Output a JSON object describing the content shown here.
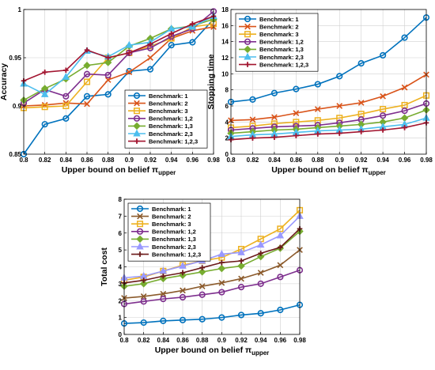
{
  "chart_data": [
    {
      "type": "line",
      "ylabel": "Accuracy",
      "xlabel": "Upper bound on belief π",
      "xlabel_sub": "upper",
      "x": [
        0.8,
        0.82,
        0.84,
        0.86,
        0.88,
        0.9,
        0.92,
        0.94,
        0.96,
        0.98
      ],
      "xlim": [
        0.8,
        0.98
      ],
      "ylim": [
        0.85,
        1
      ],
      "xticks": [
        "0.8",
        "0.82",
        "0.84",
        "0.86",
        "0.88",
        "0.9",
        "0.92",
        "0.94",
        "0.96",
        "0.98"
      ],
      "yticks": [
        "0.85",
        "0.9",
        "0.95",
        "1"
      ],
      "legend_position": "bottom-right",
      "series": [
        {
          "name": "Benchmark: 1",
          "values": [
            0.85,
            0.881,
            0.887,
            0.91,
            0.912,
            0.936,
            0.938,
            0.963,
            0.966,
            0.99
          ]
        },
        {
          "name": "Benchmark: 2",
          "values": [
            0.9,
            0.901,
            0.903,
            0.902,
            0.927,
            0.935,
            0.95,
            0.97,
            0.978,
            0.982
          ]
        },
        {
          "name": "Benchmark: 3",
          "values": [
            0.898,
            0.899,
            0.9,
            0.925,
            0.95,
            0.955,
            0.962,
            0.97,
            0.982,
            0.985
          ]
        },
        {
          "name": "Benchmark: 1,2",
          "values": [
            0.903,
            0.917,
            0.91,
            0.933,
            0.932,
            0.955,
            0.96,
            0.972,
            0.98,
            0.998
          ]
        },
        {
          "name": "Benchmark: 1,3",
          "values": [
            0.906,
            0.918,
            0.928,
            0.942,
            0.945,
            0.962,
            0.97,
            0.98,
            0.983,
            0.99
          ]
        },
        {
          "name": "Benchmark: 2,3",
          "values": [
            0.923,
            0.912,
            0.93,
            0.957,
            0.951,
            0.963,
            0.966,
            0.98,
            0.982,
            0.993
          ]
        },
        {
          "name": "Benchmark: 1,2,3",
          "values": [
            0.926,
            0.935,
            0.937,
            0.958,
            0.95,
            0.955,
            0.964,
            0.975,
            0.985,
            0.993
          ]
        }
      ]
    },
    {
      "type": "line",
      "ylabel": "Stopping time",
      "xlabel": "Upper bound on belief π",
      "xlabel_sub": "upper",
      "x": [
        0.8,
        0.82,
        0.84,
        0.86,
        0.88,
        0.9,
        0.92,
        0.94,
        0.96,
        0.98
      ],
      "xlim": [
        0.8,
        0.98
      ],
      "ylim": [
        0,
        18
      ],
      "xticks": [
        "0.8",
        "0.82",
        "0.84",
        "0.86",
        "0.88",
        "0.9",
        "0.92",
        "0.94",
        "0.96",
        "0.98"
      ],
      "yticks": [
        "0",
        "2",
        "4",
        "6",
        "8",
        "10",
        "12",
        "14",
        "16",
        "18"
      ],
      "legend_position": "top-left",
      "series": [
        {
          "name": "Benchmark: 1",
          "values": [
            6.5,
            6.8,
            7.6,
            8.1,
            8.7,
            9.7,
            11.3,
            12.3,
            14.5,
            17.0
          ]
        },
        {
          "name": "Benchmark: 2",
          "values": [
            4.2,
            4.3,
            4.6,
            5.1,
            5.6,
            6.0,
            6.4,
            7.2,
            8.3,
            9.9
          ]
        },
        {
          "name": "Benchmark: 3",
          "values": [
            3.3,
            3.5,
            3.8,
            4.0,
            4.2,
            4.5,
            5.0,
            5.6,
            6.1,
            7.3
          ]
        },
        {
          "name": "Benchmark: 1,2",
          "values": [
            3.0,
            3.2,
            3.4,
            3.5,
            3.6,
            3.9,
            4.3,
            4.8,
            5.4,
            6.3
          ]
        },
        {
          "name": "Benchmark: 1,3",
          "values": [
            2.6,
            2.8,
            3.0,
            3.1,
            3.3,
            3.5,
            3.7,
            4.0,
            4.5,
            5.5
          ]
        },
        {
          "name": "Benchmark: 2,3",
          "values": [
            2.2,
            2.4,
            2.5,
            2.7,
            2.9,
            3.0,
            3.1,
            3.4,
            3.7,
            4.5
          ]
        },
        {
          "name": "Benchmark: 1,2,3",
          "values": [
            1.8,
            2.0,
            2.1,
            2.3,
            2.5,
            2.6,
            2.8,
            3.0,
            3.3,
            3.9
          ]
        }
      ]
    },
    {
      "type": "line",
      "ylabel": "Total cost",
      "xlabel": "Upper bound on belief π",
      "xlabel_sub": "upper",
      "x": [
        0.8,
        0.82,
        0.84,
        0.86,
        0.88,
        0.9,
        0.92,
        0.94,
        0.96,
        0.98
      ],
      "xlim": [
        0.8,
        0.98
      ],
      "ylim": [
        0,
        8
      ],
      "xticks": [
        "0.8",
        "0.82",
        "0.84",
        "0.86",
        "0.88",
        "0.9",
        "0.92",
        "0.94",
        "0.96",
        "0.98"
      ],
      "yticks": [
        "0",
        "1",
        "2",
        "3",
        "4",
        "5",
        "6",
        "7",
        "8"
      ],
      "legend_position": "top-left",
      "series": [
        {
          "name": "Benchmark: 1",
          "values": [
            0.65,
            0.7,
            0.8,
            0.85,
            0.9,
            1.0,
            1.15,
            1.25,
            1.45,
            1.75
          ]
        },
        {
          "name": "Benchmark: 2",
          "values": [
            2.15,
            2.25,
            2.4,
            2.6,
            2.85,
            3.05,
            3.3,
            3.65,
            4.1,
            5.0
          ]
        },
        {
          "name": "Benchmark: 3",
          "values": [
            3.2,
            3.4,
            3.75,
            4.1,
            4.35,
            4.55,
            5.05,
            5.65,
            6.25,
            7.35
          ]
        },
        {
          "name": "Benchmark: 1,2",
          "values": [
            1.8,
            1.95,
            2.1,
            2.2,
            2.35,
            2.5,
            2.8,
            3.0,
            3.4,
            3.8
          ]
        },
        {
          "name": "Benchmark: 1,3",
          "values": [
            2.85,
            3.0,
            3.3,
            3.5,
            3.7,
            3.9,
            4.05,
            4.6,
            5.1,
            6.1
          ]
        },
        {
          "name": "Benchmark: 2,3",
          "values": [
            3.35,
            3.45,
            3.75,
            4.05,
            4.35,
            4.75,
            4.85,
            5.3,
            5.85,
            7.0
          ]
        },
        {
          "name": "Benchmark: 1,2,3",
          "values": [
            3.05,
            3.2,
            3.45,
            3.65,
            3.95,
            4.25,
            4.35,
            4.8,
            5.15,
            6.25
          ]
        }
      ]
    }
  ],
  "series_styles": [
    {
      "color": "#0072BD",
      "marker": "circle"
    },
    {
      "color": "#D95319",
      "marker": "x"
    },
    {
      "color": "#EDB120",
      "marker": "square"
    },
    {
      "color": "#7E2F8E",
      "marker": "circle"
    },
    {
      "color": "#77AC30",
      "marker": "diamond"
    },
    {
      "color": "#4DBEEE",
      "marker": "triangle"
    },
    {
      "color": "#A2142F",
      "marker": "plus"
    }
  ],
  "series_styles_cost": [
    {
      "color": "#0072BD",
      "marker": "circle"
    },
    {
      "color": "#8B5A2B",
      "marker": "x"
    },
    {
      "color": "#EDB120",
      "marker": "square"
    },
    {
      "color": "#7E2F8E",
      "marker": "circle"
    },
    {
      "color": "#77AC30",
      "marker": "diamond"
    },
    {
      "color": "#9999FF",
      "marker": "triangle"
    },
    {
      "color": "#6B1A1A",
      "marker": "plus"
    }
  ]
}
